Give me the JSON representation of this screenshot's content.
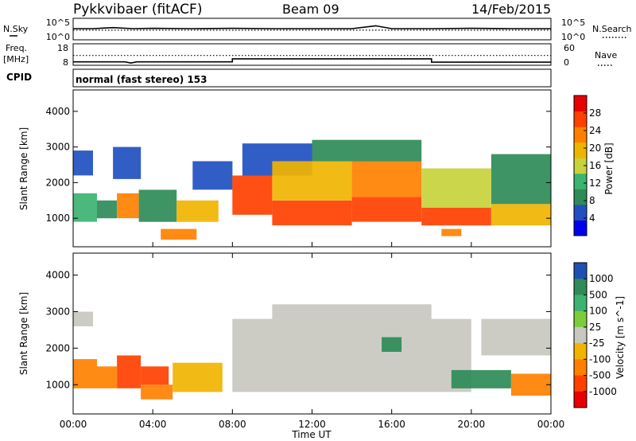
{
  "header": {
    "station": "Pykkvibaer (fitACF)",
    "beam": "Beam 09",
    "date": "14/Feb/2015"
  },
  "chart_data": [
    {
      "type": "line",
      "panel": "noise",
      "left_label": "N.Sky",
      "right_label": "N.Search",
      "left_ticks": [
        "10^5",
        "10^0"
      ],
      "right_ticks": [
        "10^5",
        "10^0"
      ],
      "series": [
        {
          "name": "N.Sky",
          "style": "solid",
          "x": [
            0,
            1,
            2,
            3,
            4,
            6,
            8,
            10,
            12,
            14,
            15.2,
            16,
            18,
            20,
            22,
            24
          ],
          "y": [
            2.6,
            2.6,
            2.9,
            2.6,
            2.7,
            2.6,
            2.7,
            2.6,
            2.6,
            2.6,
            3.4,
            2.6,
            2.6,
            2.7,
            2.6,
            2.6
          ]
        },
        {
          "name": "N.Search",
          "style": "dotted",
          "x": [
            0,
            24
          ],
          "y": [
            2.2,
            2.2
          ]
        }
      ],
      "ylim": [
        0,
        5
      ]
    },
    {
      "type": "line",
      "panel": "frequency",
      "left_label": "Freq. [MHz]",
      "right_label": "Nave",
      "left_ticks": [
        "18",
        "8"
      ],
      "right_ticks": [
        "60",
        "0"
      ],
      "series": [
        {
          "name": "Freq.",
          "style": "dotted",
          "x": [
            0,
            24
          ],
          "y": [
            12.5,
            12.5
          ]
        },
        {
          "name": "Nave",
          "style": "solid",
          "x": [
            0,
            2.6,
            2.9,
            3.2,
            8.0,
            8.0,
            12,
            18,
            18,
            24
          ],
          "y": [
            6,
            6,
            2,
            6,
            6,
            16,
            16,
            16,
            5,
            5
          ]
        }
      ],
      "ylim_left": [
        8,
        18
      ],
      "ylim_right": [
        0,
        60
      ]
    },
    {
      "type": "text",
      "panel": "cpid",
      "label": "CPID",
      "value": "normal (fast stereo) 153"
    },
    {
      "type": "heatmap",
      "panel": "power",
      "xlabel": "",
      "ylabel": "Slant Range [km]",
      "yticks": [
        "1000",
        "2000",
        "3000",
        "4000"
      ],
      "ylim": [
        200,
        4600
      ],
      "colorbar_label": "Power [dB]",
      "colorbar_ticks": [
        "4",
        "8",
        "12",
        "16",
        "20",
        "24",
        "28"
      ],
      "colorbar_colors": [
        "#0000ee",
        "#2050c0",
        "#2e8b57",
        "#3cb371",
        "#c8d23c",
        "#f0b400",
        "#ff8000",
        "#ff4000",
        "#e80000"
      ],
      "colorbar_range": [
        0,
        32
      ],
      "regions": [
        {
          "x": [
            0,
            1.2
          ],
          "range": [
            900,
            1700
          ],
          "level": 14
        },
        {
          "x": [
            1.2,
            2.2
          ],
          "range": [
            1000,
            1500
          ],
          "level": 8
        },
        {
          "x": [
            2.2,
            3.3
          ],
          "range": [
            1000,
            1700
          ],
          "level": 24
        },
        {
          "x": [
            3.3,
            5.2
          ],
          "range": [
            900,
            1800
          ],
          "level": 10
        },
        {
          "x": [
            5.2,
            7.3
          ],
          "range": [
            900,
            1500
          ],
          "level": 18
        },
        {
          "x": [
            4.4,
            6.2
          ],
          "range": [
            400,
            700
          ],
          "level": 22
        },
        {
          "x": [
            0,
            1.0
          ],
          "range": [
            2200,
            2900
          ],
          "level": 6
        },
        {
          "x": [
            2.0,
            3.4
          ],
          "range": [
            2100,
            3000
          ],
          "level": 6
        },
        {
          "x": [
            6.0,
            8.0
          ],
          "range": [
            1800,
            2600
          ],
          "level": 6
        },
        {
          "x": [
            8.0,
            10.0
          ],
          "range": [
            1100,
            2200
          ],
          "level": 26
        },
        {
          "x": [
            8.5,
            12.0
          ],
          "range": [
            2200,
            3100
          ],
          "level": 6
        },
        {
          "x": [
            10.0,
            14.0
          ],
          "range": [
            800,
            1500
          ],
          "level": 28
        },
        {
          "x": [
            10.0,
            14.0
          ],
          "range": [
            1500,
            2600
          ],
          "level": 18
        },
        {
          "x": [
            14.0,
            17.5
          ],
          "range": [
            900,
            1600
          ],
          "level": 28
        },
        {
          "x": [
            14.0,
            17.5
          ],
          "range": [
            1600,
            2600
          ],
          "level": 22
        },
        {
          "x": [
            12.0,
            17.5
          ],
          "range": [
            2600,
            3200
          ],
          "level": 10
        },
        {
          "x": [
            17.5,
            21.0
          ],
          "range": [
            800,
            1300
          ],
          "level": 28
        },
        {
          "x": [
            17.5,
            21.0
          ],
          "range": [
            1300,
            2400
          ],
          "level": 16
        },
        {
          "x": [
            21.0,
            24.0
          ],
          "range": [
            800,
            1400
          ],
          "level": 18
        },
        {
          "x": [
            21.0,
            24.0
          ],
          "range": [
            1400,
            2800
          ],
          "level": 8
        },
        {
          "x": [
            18.5,
            19.5
          ],
          "range": [
            500,
            700
          ],
          "level": 24
        }
      ]
    },
    {
      "type": "heatmap",
      "panel": "velocity",
      "xlabel": "Time UT",
      "ylabel": "Slant Range [km]",
      "xticks": [
        "00:00",
        "04:00",
        "08:00",
        "12:00",
        "16:00",
        "20:00",
        "00:00"
      ],
      "xlim": [
        0,
        24
      ],
      "yticks": [
        "1000",
        "2000",
        "3000",
        "4000"
      ],
      "ylim": [
        200,
        4600
      ],
      "colorbar_label": "Velocity [m s^-1]",
      "colorbar_ticks": [
        "1000",
        "500",
        "100",
        "25",
        "-25",
        "-100",
        "-500",
        "-1000"
      ],
      "colorbar_colors": [
        "#1e50b4",
        "#2e8b57",
        "#3cb371",
        "#7ccd3c",
        "#c8c8c0",
        "#f0b400",
        "#ff8000",
        "#ff4000",
        "#e80000"
      ],
      "regions": [
        {
          "x": [
            0,
            1.2
          ],
          "range": [
            900,
            1700
          ],
          "v": -300
        },
        {
          "x": [
            1.2,
            2.2
          ],
          "range": [
            900,
            1500
          ],
          "v": -200
        },
        {
          "x": [
            2.2,
            3.4
          ],
          "range": [
            900,
            1800
          ],
          "v": -600
        },
        {
          "x": [
            3.4,
            5.0
          ],
          "range": [
            600,
            1000
          ],
          "v": -300
        },
        {
          "x": [
            3.4,
            4.8
          ],
          "range": [
            1000,
            1500
          ],
          "v": -700
        },
        {
          "x": [
            5.0,
            7.5
          ],
          "range": [
            800,
            1600
          ],
          "v": -70
        },
        {
          "x": [
            0,
            1.0
          ],
          "range": [
            2600,
            3000
          ],
          "v": 0
        },
        {
          "x": [
            8.0,
            20.0
          ],
          "range": [
            800,
            2800
          ],
          "v": 0
        },
        {
          "x": [
            10.0,
            18.0
          ],
          "range": [
            2800,
            3200
          ],
          "v": 0
        },
        {
          "x": [
            15.5,
            16.5
          ],
          "range": [
            1900,
            2300
          ],
          "v": 400
        },
        {
          "x": [
            19.0,
            22.0
          ],
          "range": [
            900,
            1400
          ],
          "v": 300
        },
        {
          "x": [
            22.0,
            24.0
          ],
          "range": [
            700,
            1300
          ],
          "v": -400
        },
        {
          "x": [
            20.5,
            24.0
          ],
          "range": [
            1800,
            2800
          ],
          "v": 0
        }
      ]
    }
  ]
}
